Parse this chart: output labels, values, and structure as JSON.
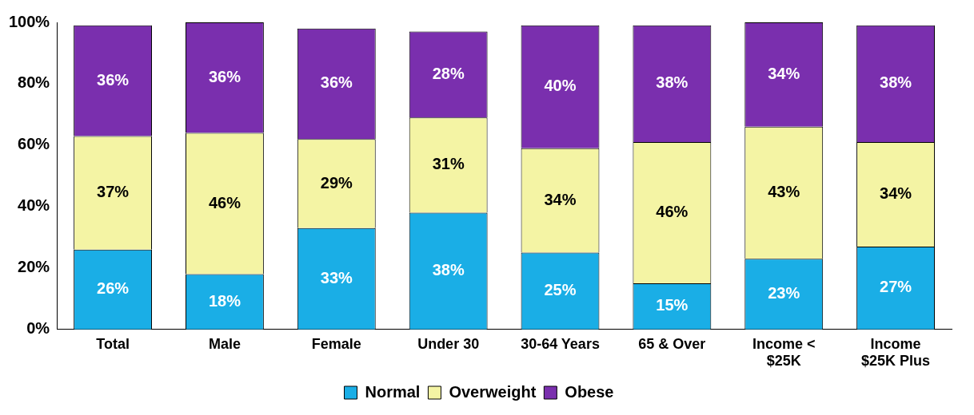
{
  "chart_data": {
    "type": "bar",
    "stacked": true,
    "data_labels": true,
    "grid": false,
    "legend": "bottom",
    "categories": [
      "Total",
      "Male",
      "Female",
      "Under 30",
      "30-64 Years",
      "65 & Over",
      "Income < $25K",
      "Income $25K Plus"
    ],
    "ylim": [
      0,
      100
    ],
    "yticks": [
      {
        "value": 0,
        "label": "0%"
      },
      {
        "value": 20,
        "label": "20%"
      },
      {
        "value": 40,
        "label": "40%"
      },
      {
        "value": 60,
        "label": "60%"
      },
      {
        "value": 80,
        "label": "80%"
      },
      {
        "value": 100,
        "label": "100%"
      }
    ],
    "series": [
      {
        "name": "Normal",
        "color": "#1aaee6",
        "values": [
          26,
          18,
          33,
          38,
          25,
          15,
          23,
          27
        ],
        "value_labels": [
          "26%",
          "18%",
          "33%",
          "38%",
          "25%",
          "15%",
          "23%",
          "27%"
        ]
      },
      {
        "name": "Overweight",
        "color": "#f4f4a4",
        "values": [
          37,
          46,
          29,
          31,
          34,
          46,
          43,
          34
        ],
        "value_labels": [
          "37%",
          "46%",
          "29%",
          "31%",
          "34%",
          "46%",
          "43%",
          "34%"
        ]
      },
      {
        "name": "Obese",
        "color": "#7a2fae",
        "values": [
          36,
          36,
          36,
          28,
          40,
          38,
          34,
          38
        ],
        "value_labels": [
          "36%",
          "36%",
          "36%",
          "28%",
          "40%",
          "38%",
          "34%",
          "38%"
        ]
      }
    ]
  }
}
